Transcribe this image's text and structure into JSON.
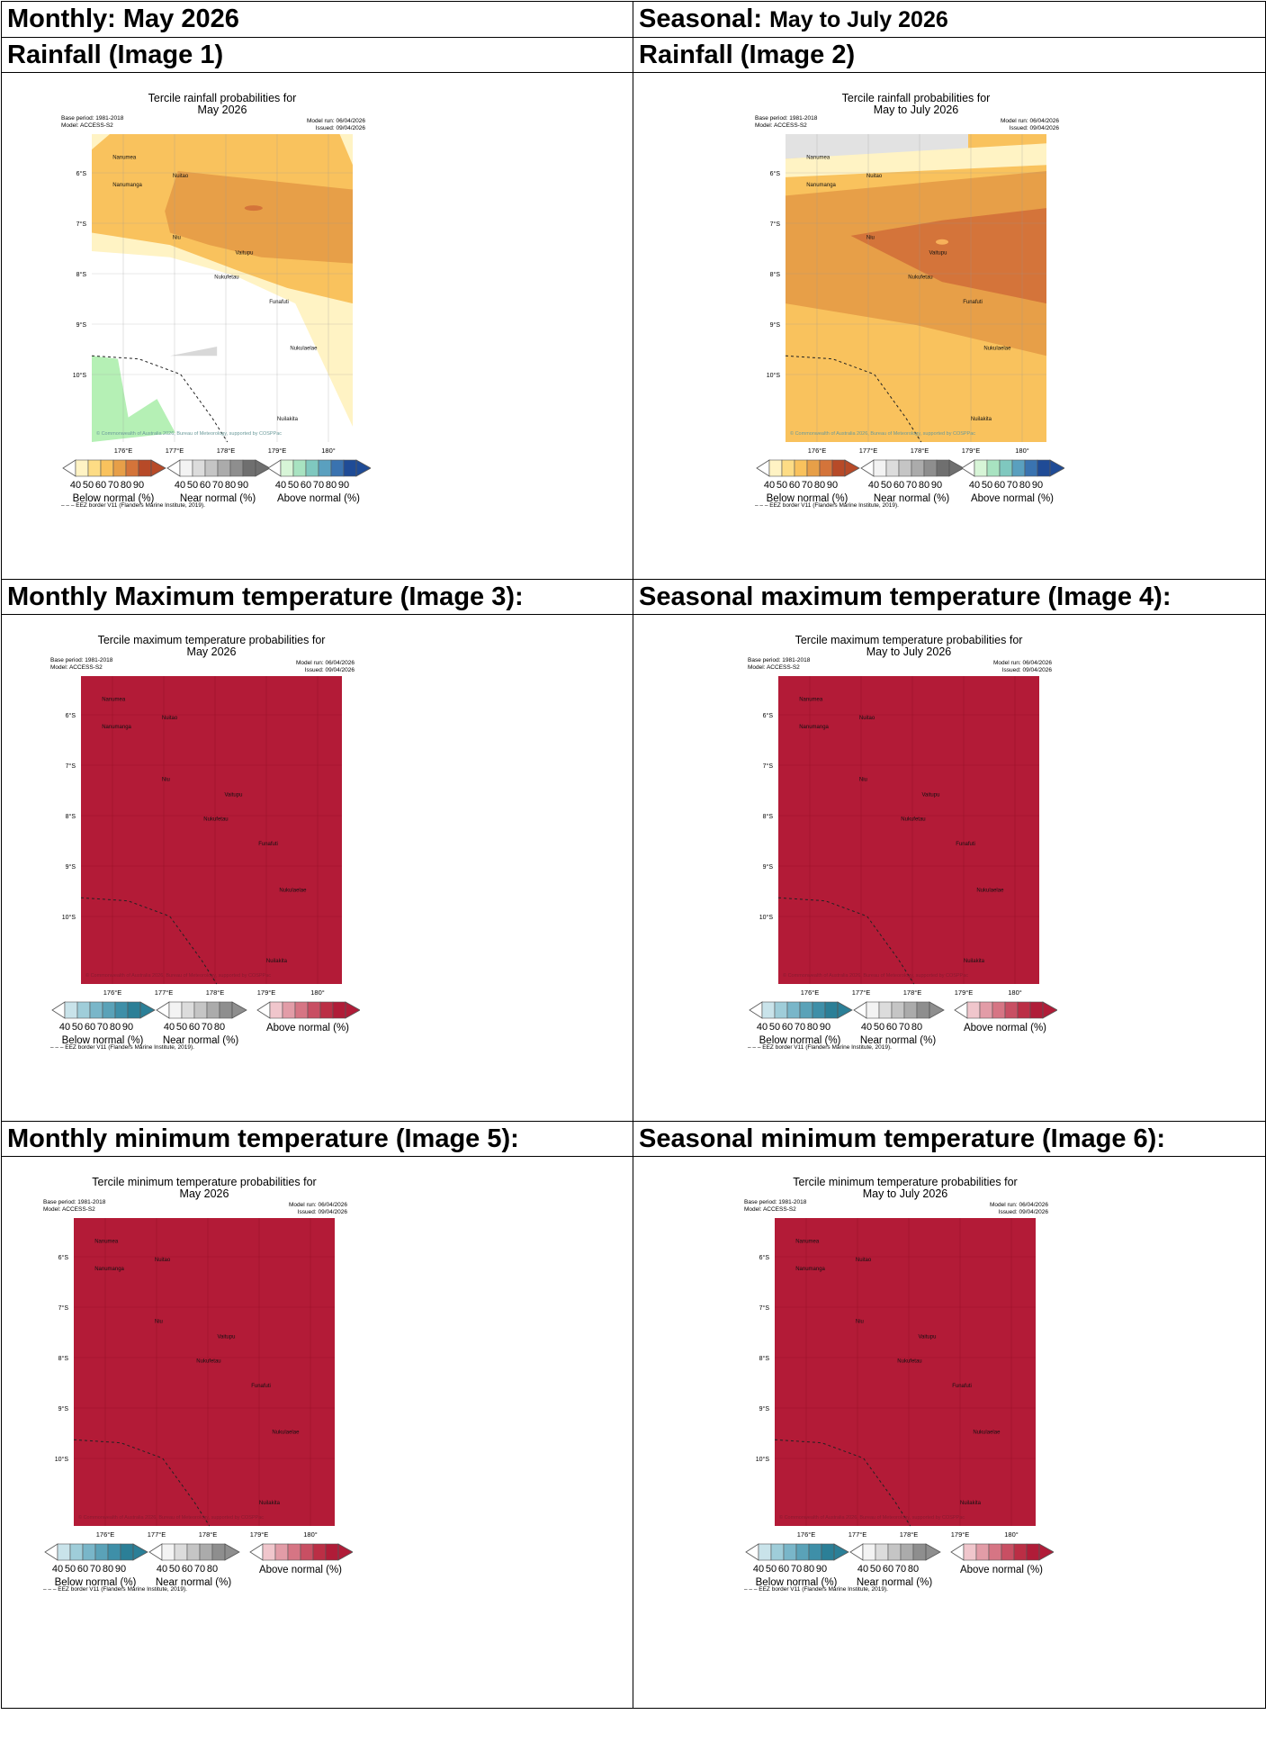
{
  "headers": {
    "row1_left": "Monthly: May 2026",
    "row1_right_prefix": "Seasonal: ",
    "row1_right_rest": "May to July 2026",
    "row2_left": "Rainfall (Image 1)",
    "row2_right": "Rainfall (Image 2)",
    "row3_left": "Monthly Maximum temperature (Image 3):",
    "row3_right": "Seasonal maximum temperature (Image 4):",
    "row4_left": "Monthly minimum temperature (Image 5):",
    "row4_right": "Seasonal minimum temperature (Image 6):"
  },
  "common": {
    "base_period": "Base period: 1981-2018",
    "model": "Model: ACCESS-S2",
    "model_run": "Model run: 06/04/2026",
    "issued": "Issued: 09/04/2026",
    "copyright": "© Commonwealth of Australia 2026, Bureau of Meteorology, supported by COSPPac",
    "eez": "– – – EEZ border V11 (Flanders Marine Institute, 2019).",
    "lat_labels": [
      "6°S",
      "7°S",
      "8°S",
      "9°S",
      "10°S"
    ],
    "lon_labels": [
      "176°E",
      "177°E",
      "178°E",
      "179°E",
      "180°"
    ],
    "islands": [
      "Nanumea",
      "Nanumanga",
      "Nuitao",
      "Niu",
      "Vaitupu",
      "Nukufetau",
      "Funafuti",
      "Nukulaelae",
      "Nuilakita"
    ],
    "legend_below": "Below normal (%)",
    "legend_near": "Near normal (%)",
    "legend_above": "Above normal (%)",
    "ticks_6": [
      "40",
      "50",
      "60",
      "70",
      "80",
      "90"
    ],
    "ticks_5": [
      "40",
      "50",
      "60",
      "70",
      "80"
    ]
  },
  "figures": {
    "img1": {
      "title_l1": "Tercile rainfall probabilities for",
      "title_l2": "May 2026"
    },
    "img2": {
      "title_l1": "Tercile rainfall probabilities for",
      "title_l2": "May to July 2026"
    },
    "img3": {
      "title_l1": "Tercile maximum temperature probabilities for",
      "title_l2": "May 2026"
    },
    "img4": {
      "title_l1": "Tercile maximum temperature probabilities for",
      "title_l2": "May to July 2026"
    },
    "img5": {
      "title_l1": "Tercile minimum temperature probabilities for",
      "title_l2": "May 2026"
    },
    "img6": {
      "title_l1": "Tercile minimum temperature probabilities for",
      "title_l2": "May to July 2026"
    }
  },
  "colors": {
    "below_rain": [
      "#fff3c4",
      "#fddc85",
      "#f9c25d",
      "#e79f48",
      "#d4743a",
      "#b74a28"
    ],
    "near": [
      "#f3f3f3",
      "#dcdcdc",
      "#c5c5c5",
      "#ababab",
      "#8e8e8e",
      "#6f6f6f"
    ],
    "above_rain": [
      "#d7f5d7",
      "#a8e3c1",
      "#7fc8bf",
      "#5aa0bf",
      "#3a73b0",
      "#1f4b96"
    ],
    "below_temp": [
      "#c9e3ea",
      "#9fcdd9",
      "#79b6c9",
      "#5aa2b8",
      "#3e8fa8",
      "#2b7f97"
    ],
    "above_temp": [
      "#f0c6cc",
      "#e29ca7",
      "#d67584",
      "#c84f63",
      "#bb2e45",
      "#b01c38"
    ],
    "temp_fill": "#b31b37"
  }
}
